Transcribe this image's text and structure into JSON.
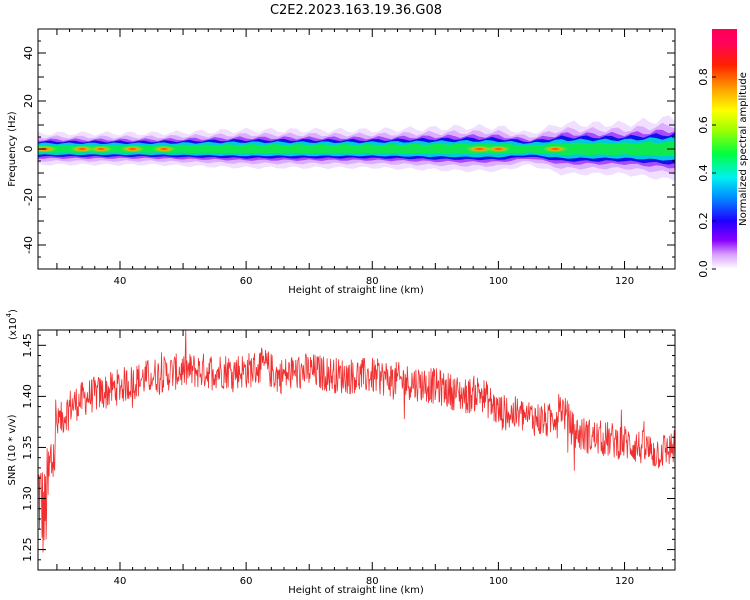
{
  "figure_title": "C2E2.2023.163.19.36.G08",
  "chart_data": [
    {
      "type": "heatmap",
      "xlabel": "Height of straight line (km)",
      "ylabel": "Frequency (Hz)",
      "xlim": [
        27,
        128
      ],
      "ylim": [
        -50,
        50
      ],
      "x_ticks": [
        40,
        60,
        80,
        100,
        120
      ],
      "y_ticks": [
        40,
        20,
        0,
        -20,
        -40
      ],
      "colorbar": {
        "label": "Normalized spectral amplitude",
        "range": [
          0.0,
          1.0
        ],
        "ticks": [
          "0.0",
          "0.2",
          "0.4",
          "0.6",
          "0.8"
        ]
      },
      "band": {
        "center_hz": 0,
        "half_width_hz": [
          [
            27,
            2.5
          ],
          [
            45,
            2.5
          ],
          [
            60,
            3
          ],
          [
            80,
            3
          ],
          [
            95,
            3.5
          ],
          [
            100,
            3.5
          ],
          [
            105,
            2.5
          ],
          [
            110,
            4
          ],
          [
            120,
            4
          ],
          [
            128,
            5
          ]
        ],
        "amplitude_peaks": [
          {
            "x": 28,
            "amp": 0.85
          },
          {
            "x": 34,
            "amp": 0.75
          },
          {
            "x": 37,
            "amp": 0.7
          },
          {
            "x": 42,
            "amp": 0.75
          },
          {
            "x": 47,
            "amp": 0.7
          },
          {
            "x": 97,
            "amp": 0.9
          },
          {
            "x": 100,
            "amp": 0.75
          },
          {
            "x": 109,
            "amp": 0.8
          }
        ]
      }
    },
    {
      "type": "line",
      "xlabel": "Height of straight line (km)",
      "ylabel": "SNR (10 * v/v)",
      "y_multiplier_label": "(x10",
      "y_multiplier_exp": "4",
      "xlim": [
        27,
        128
      ],
      "ylim": [
        1.23,
        1.465
      ],
      "x_ticks": [
        40,
        60,
        80,
        100,
        120
      ],
      "y_ticks": [
        "1.25",
        "1.30",
        "1.35",
        "1.40",
        "1.45"
      ],
      "color": "#f03030",
      "series": [
        {
          "x": [
            27,
            28,
            29,
            30,
            32,
            35,
            38,
            40,
            45,
            50,
            55,
            60,
            63,
            65,
            70,
            75,
            80,
            85,
            90,
            95,
            97,
            100,
            105,
            108,
            110,
            112,
            115,
            120,
            125,
            128
          ],
          "y": [
            1.31,
            1.28,
            1.33,
            1.37,
            1.39,
            1.4,
            1.405,
            1.41,
            1.42,
            1.425,
            1.425,
            1.425,
            1.43,
            1.42,
            1.425,
            1.42,
            1.42,
            1.415,
            1.41,
            1.4,
            1.405,
            1.385,
            1.38,
            1.375,
            1.39,
            1.365,
            1.36,
            1.355,
            1.345,
            1.35
          ]
        }
      ]
    }
  ]
}
